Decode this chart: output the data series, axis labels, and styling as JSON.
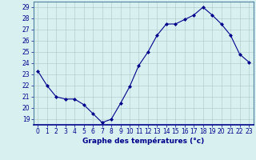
{
  "x": [
    0,
    1,
    2,
    3,
    4,
    5,
    6,
    7,
    8,
    9,
    10,
    11,
    12,
    13,
    14,
    15,
    16,
    17,
    18,
    19,
    20,
    21,
    22,
    23
  ],
  "y": [
    23.3,
    22.0,
    21.0,
    20.8,
    20.8,
    20.3,
    19.5,
    18.7,
    19.0,
    20.4,
    21.9,
    23.8,
    25.0,
    26.5,
    27.5,
    27.5,
    27.9,
    28.3,
    29.0,
    28.3,
    27.5,
    26.5,
    24.8,
    24.1
  ],
  "line_color": "#00008b",
  "marker": "D",
  "marker_size": 2,
  "bg_color": "#d8f0f0",
  "grid_color": "#a8c8c8",
  "xlabel": "Graphe des températures (°c)",
  "xlabel_color": "#00008b",
  "xlabel_fontsize": 6.5,
  "tick_color": "#00008b",
  "tick_fontsize": 5.5,
  "ylim": [
    18.5,
    29.5
  ],
  "yticks": [
    19,
    20,
    21,
    22,
    23,
    24,
    25,
    26,
    27,
    28,
    29
  ],
  "xlim": [
    -0.5,
    23.5
  ],
  "xticks": [
    0,
    1,
    2,
    3,
    4,
    5,
    6,
    7,
    8,
    9,
    10,
    11,
    12,
    13,
    14,
    15,
    16,
    17,
    18,
    19,
    20,
    21,
    22,
    23
  ]
}
